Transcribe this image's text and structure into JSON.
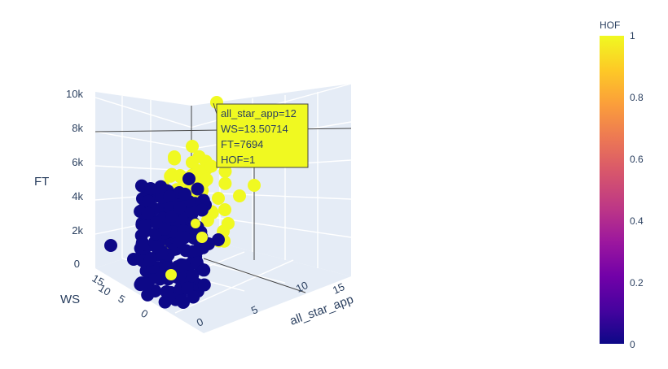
{
  "chart_data": {
    "type": "scatter3d",
    "axes": {
      "x": {
        "title": "all_star_app",
        "ticks": [
          "0",
          "5",
          "10",
          "15"
        ]
      },
      "y": {
        "title": "WS",
        "ticks": [
          "0",
          "5",
          "10",
          "15"
        ]
      },
      "z": {
        "title": "FT",
        "ticks": [
          "0",
          "2k",
          "4k",
          "6k",
          "8k",
          "10k"
        ],
        "range": [
          0,
          10000
        ]
      }
    },
    "color": {
      "variable": "HOF",
      "title": "HOF",
      "range": [
        0,
        1
      ],
      "ticks": [
        "0",
        "0.2",
        "0.4",
        "0.6",
        "0.8",
        "1"
      ],
      "scale": [
        "#0d0887",
        "#46039f",
        "#7201a8",
        "#9c179e",
        "#bd3786",
        "#d8576b",
        "#ed7953",
        "#fb9f3a",
        "#fdca26",
        "#f0f921"
      ]
    },
    "hover": {
      "lines": [
        "all_star_app=12",
        "WS=13.50714",
        "FT=7694",
        "HOF=1"
      ]
    },
    "series": [
      {
        "hof": 0,
        "color": "#0d0887",
        "approx_count": 170
      },
      {
        "hof": 1,
        "color": "#f0f921",
        "approx_count": 50
      }
    ]
  }
}
